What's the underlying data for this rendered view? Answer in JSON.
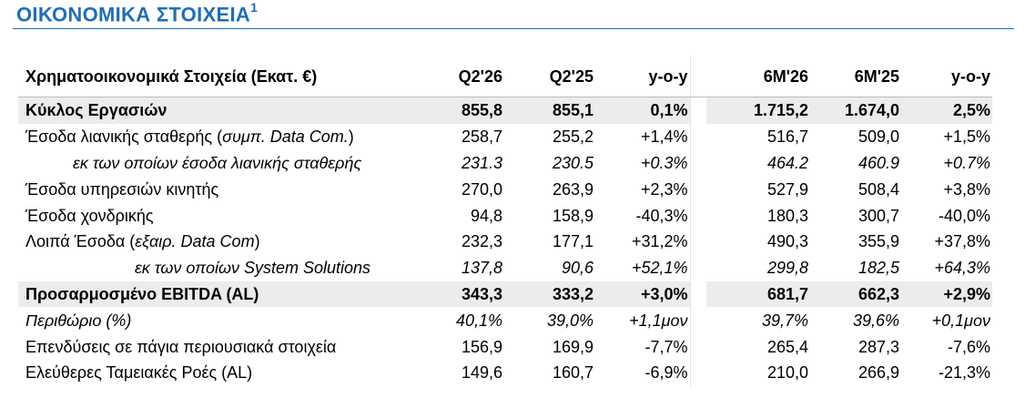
{
  "title": "ΟΙΚΟΝΟΜΙΚΑ ΣΤΟΙΧΕΙΑ",
  "title_sup": "1",
  "header": {
    "label": "Χρηματοοικονομικά Στοιχεία (Εκατ. €)",
    "cols": [
      "Q2'26",
      "Q2'25",
      "y-o-y",
      "6M'26",
      "6M'25",
      "y-o-y"
    ]
  },
  "rows": [
    {
      "label": "Κύκλος Εργασιών",
      "label_em": "",
      "label_tail": "",
      "values": [
        "855,8",
        "855,1",
        "0,1%",
        "1.715,2",
        "1.674,0",
        "2,5%"
      ]
    },
    {
      "label": "Έσοδα λιανικής σταθερής (",
      "label_em": "συμπ. Data Com.",
      "label_tail": ")",
      "values": [
        "258,7",
        "255,2",
        "+1,4%",
        "516,7",
        "509,0",
        "+1,5%"
      ]
    },
    {
      "label": "εκ των οποίων έσοδα λιανικής σταθερής",
      "label_em": "",
      "label_tail": "",
      "values": [
        "231.3",
        "230.5",
        "+0.3%",
        "464.2",
        "460.9",
        "+0.7%"
      ]
    },
    {
      "label": "Έσοδα υπηρεσιών κινητής",
      "label_em": "",
      "label_tail": "",
      "values": [
        "270,0",
        "263,9",
        "+2,3%",
        "527,9",
        "508,4",
        "+3,8%"
      ]
    },
    {
      "label": "Έσοδα χονδρικής",
      "label_em": "",
      "label_tail": "",
      "values": [
        "94,8",
        "158,9",
        "-40,3%",
        "180,3",
        "300,7",
        "-40,0%"
      ]
    },
    {
      "label": "Λοιπά Έσοδα (",
      "label_em": "εξαιρ. Data Com",
      "label_tail": ")",
      "values": [
        "232,3",
        "177,1",
        "+31,2%",
        "490,3",
        "355,9",
        "+37,8%"
      ]
    },
    {
      "label": "εκ των οποίων System Solutions",
      "label_em": "",
      "label_tail": "",
      "values": [
        "137,8",
        "90,6",
        "+52,1%",
        "299,8",
        "182,5",
        "+64,3%"
      ]
    },
    {
      "label": "Προσαρμοσμένο EBITDA (AL)",
      "label_em": "",
      "label_tail": "",
      "values": [
        "343,3",
        "333,2",
        "+3,0%",
        "681,7",
        "662,3",
        "+2,9%"
      ]
    },
    {
      "label": "Περιθώριο (%)",
      "label_em": "",
      "label_tail": "",
      "values": [
        "40,1%",
        "39,0%",
        "+1,1μον",
        "39,7%",
        "39,6%",
        "+0,1μον"
      ]
    },
    {
      "label": "Επενδύσεις σε πάγια περιουσιακά στοιχεία",
      "label_em": "",
      "label_tail": "",
      "values": [
        "156,9",
        "169,9",
        "-7,7%",
        "265,4",
        "287,3",
        "-7,6%"
      ]
    },
    {
      "label": "Ελεύθερες Ταμειακές Ροές (AL)",
      "label_em": "",
      "label_tail": "",
      "values": [
        "149,6",
        "160,7",
        "-6,9%",
        "210,0",
        "266,9",
        "-21,3%"
      ]
    }
  ]
}
